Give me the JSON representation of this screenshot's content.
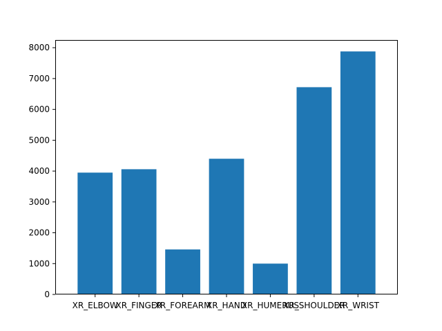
{
  "chart_data": {
    "type": "bar",
    "title": "",
    "xlabel": "",
    "ylabel": "",
    "categories": [
      "XR_ELBOW",
      "XR_FINGER",
      "XR_FOREARM",
      "XR_HAND",
      "XR_HUMERUS",
      "XR_SHOULDER",
      "XR_WRIST"
    ],
    "values": [
      3950,
      4060,
      1460,
      4400,
      1000,
      6720,
      7880
    ],
    "ylim": [
      0,
      8250
    ],
    "yticks": [
      0,
      1000,
      2000,
      3000,
      4000,
      5000,
      6000,
      7000,
      8000
    ],
    "grid": false,
    "bar_color": "#1f77b4"
  }
}
